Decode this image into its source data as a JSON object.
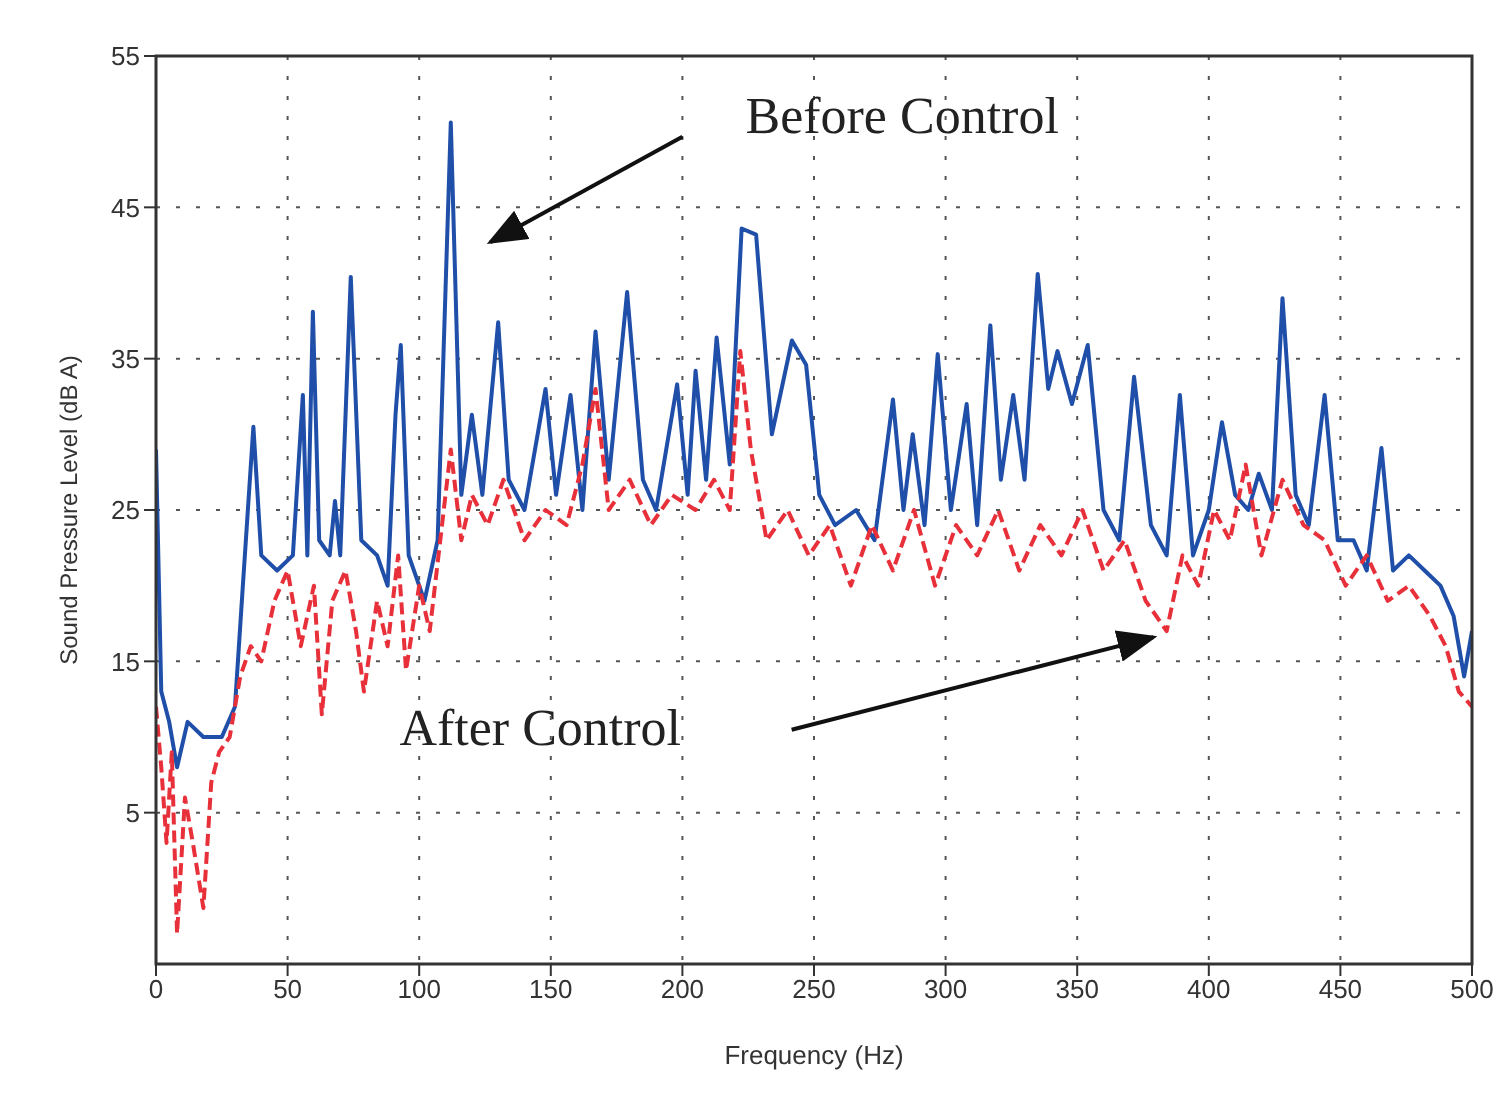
{
  "chart_data": {
    "type": "line",
    "xlabel": "Frequency (Hz)",
    "ylabel": "Sound Pressure Level (dB A)",
    "xlim": [
      0,
      500
    ],
    "xticks": [
      0,
      50,
      100,
      150,
      200,
      250,
      300,
      350,
      400,
      450,
      500
    ],
    "ylim": [
      -5,
      55
    ],
    "yticks": [
      5,
      15,
      25,
      35,
      45,
      55
    ],
    "grid": true,
    "marker": "none",
    "series": [
      {
        "color": "#1f4fa8",
        "line_style": "solid",
        "x": [
          0,
          2,
          5,
          8,
          12,
          18,
          25,
          30,
          33,
          37,
          40,
          46,
          52,
          55.8,
          57.5,
          59.6,
          62,
          66,
          68,
          70,
          74,
          78,
          84,
          88,
          91,
          93,
          96,
          102,
          107,
          112,
          116,
          120,
          124,
          130,
          134,
          140,
          148,
          152,
          157.5,
          162,
          167,
          172,
          179,
          185,
          190,
          198,
          202,
          205,
          209,
          213,
          218,
          222.5,
          228,
          234,
          241.6,
          247,
          252,
          258,
          266,
          273,
          280,
          284,
          287.5,
          292,
          297,
          302,
          308,
          312,
          317,
          321,
          325.7,
          330,
          335,
          339,
          342.5,
          348,
          354,
          360,
          366,
          371.6,
          378,
          384,
          389,
          394,
          400,
          405,
          410,
          415,
          419,
          424,
          428,
          433,
          438,
          444,
          449,
          455,
          460,
          465.6,
          470,
          476,
          482,
          488,
          493,
          497,
          500
        ],
        "values": [
          29,
          13,
          11,
          8,
          11,
          10,
          10,
          12,
          20,
          30.5,
          22,
          21,
          22,
          32.6,
          22,
          38.1,
          23,
          22,
          25.6,
          22,
          40.4,
          23,
          22,
          20,
          31.3,
          35.9,
          22,
          19,
          23,
          50.6,
          26,
          31.3,
          26,
          37.4,
          27,
          25,
          33,
          26,
          32.6,
          25,
          36.8,
          27,
          39.4,
          27,
          25,
          33.3,
          26,
          34.2,
          27,
          36.4,
          28,
          43.6,
          43.2,
          30,
          36.2,
          34.6,
          26,
          24,
          25,
          23,
          32.3,
          25,
          30,
          24,
          35.3,
          25,
          32,
          24,
          37.2,
          27,
          32.6,
          27,
          40.6,
          33,
          35.5,
          32,
          35.9,
          25,
          23,
          33.8,
          24,
          22,
          32.6,
          22,
          25,
          30.8,
          26,
          25,
          27.4,
          25,
          39,
          26,
          24,
          32.6,
          23,
          23,
          21,
          29.1,
          21,
          22,
          21,
          20,
          18,
          14,
          17
        ]
      },
      {
        "color": "#e8303a",
        "line_style": "dashed",
        "x": [
          0,
          2,
          4,
          6,
          8,
          11,
          14,
          18,
          21,
          24,
          28,
          32,
          36,
          40,
          45,
          50,
          55,
          60,
          63,
          67,
          72,
          76,
          79,
          84,
          88,
          92,
          95,
          100,
          104,
          108,
          112,
          116,
          120,
          126,
          132,
          140,
          148,
          156,
          162,
          167,
          172,
          180,
          188,
          196,
          205,
          212,
          218,
          222,
          226,
          232,
          240,
          248,
          256,
          264,
          272,
          280,
          288,
          296,
          304,
          312,
          320,
          328,
          336,
          344,
          352,
          360,
          368,
          376,
          384,
          390,
          396,
          402,
          408,
          414,
          420,
          428,
          436,
          444,
          452,
          460,
          468,
          476,
          484,
          490,
          495,
          500
        ],
        "values": [
          12,
          8,
          3,
          9,
          -3,
          6,
          3,
          -1.3,
          7,
          9,
          10,
          14,
          16,
          15,
          19,
          21,
          16,
          20,
          11.5,
          19,
          21,
          17,
          13,
          19,
          16,
          22,
          14.4,
          20,
          17,
          23,
          29,
          23,
          26,
          24,
          27,
          23,
          25,
          24,
          28,
          33,
          25,
          27,
          24,
          26,
          25,
          27,
          25,
          35.5,
          29,
          23,
          25,
          22,
          24,
          20,
          24,
          21,
          25,
          20,
          24,
          22,
          25,
          21,
          24,
          22,
          25,
          21,
          23,
          19,
          17,
          22,
          20,
          25,
          23,
          28,
          22,
          27,
          24,
          23,
          20,
          22,
          19,
          20,
          18,
          16,
          13,
          12
        ]
      }
    ],
    "annotations": [
      "Before Control",
      "After Control"
    ]
  }
}
